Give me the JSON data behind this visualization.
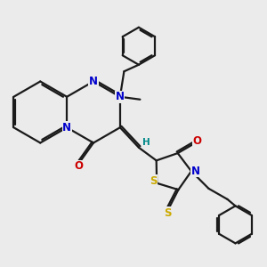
{
  "bg_color": "#ebebeb",
  "bond_color": "#1a1a1a",
  "bond_width": 1.6,
  "atom_colors": {
    "N": "#0000cc",
    "O": "#cc0000",
    "S": "#ccaa00",
    "H": "#008888",
    "C": "#1a1a1a"
  },
  "dbo": 0.055
}
